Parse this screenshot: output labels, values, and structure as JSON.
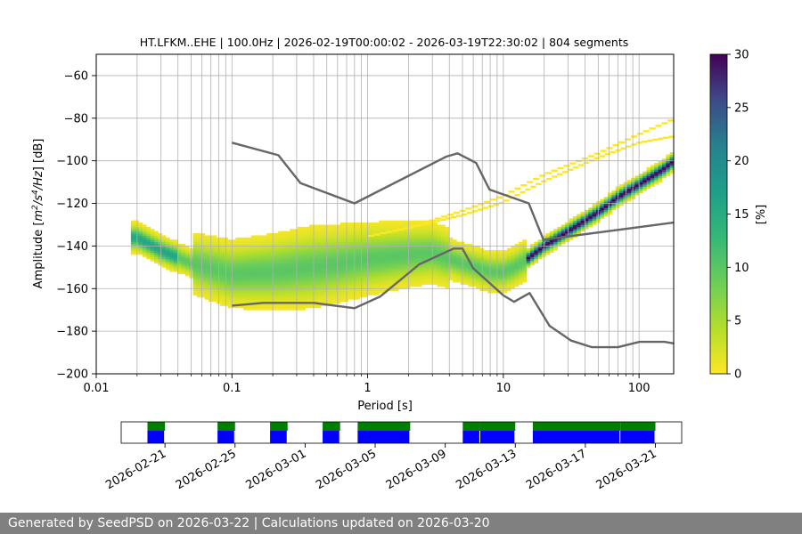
{
  "chart_data": [
    {
      "type": "heatmap",
      "title": "HT.LFKM..EHE | 100.0Hz | 2026-02-19T00:00:02 - 2026-03-19T22:30:02 | 804 segments",
      "xlabel": "Period [s]",
      "ylabel_parts": [
        "Amplitude [",
        "m",
        "2",
        "/",
        "s",
        "4",
        "/",
        "Hz",
        "] [dB]"
      ],
      "x_scale": "log",
      "xlim": [
        0.01,
        180
      ],
      "ylim": [
        -200,
        -50
      ],
      "x_ticks": [
        0.01,
        0.1,
        1,
        10,
        100
      ],
      "x_tick_labels": [
        "0.01",
        "0.1",
        "1",
        "10",
        "100"
      ],
      "y_ticks": [
        -200,
        -180,
        -160,
        -140,
        -120,
        -100,
        -80,
        -60
      ],
      "y_tick_labels": [
        "−200",
        "−180",
        "−160",
        "−140",
        "−120",
        "−100",
        "−80",
        "−60"
      ],
      "grid": true,
      "colorbar": {
        "label": "[%]",
        "range": [
          0,
          30
        ],
        "ticks": [
          0,
          5,
          10,
          15,
          20,
          25,
          30
        ],
        "colormap": "viridis_r"
      },
      "noise_models": [
        {
          "period": [
            0.1,
            0.22,
            0.32,
            0.8,
            3.8,
            4.6,
            6.3,
            7.9,
            15.4,
            20
          ],
          "db": [
            -91.5,
            -97.4,
            -110.5,
            -120,
            -98,
            -96.5,
            -101,
            -113.5,
            -120,
            -138
          ]
        },
        {
          "period": [
            0.1,
            0.17,
            0.4,
            0.8,
            1.24,
            2.4,
            4.3,
            5,
            6,
            10,
            12,
            15.6,
            21.9,
            31.6,
            45,
            70,
            101,
            154,
            180
          ],
          "db": [
            -168,
            -166.7,
            -166.7,
            -169.2,
            -163.7,
            -148.6,
            -141.2,
            -141.2,
            -150.5,
            -163.2,
            -166.2,
            -162.1,
            -177.5,
            -184.4,
            -187.5,
            -187.5,
            -185,
            -185,
            -185.7
          ]
        }
      ],
      "psd_percentile_curve": {
        "period": [
          0.02,
          0.03,
          0.05,
          0.1,
          0.2,
          0.5,
          1,
          2,
          3,
          5,
          8,
          10,
          12,
          15,
          20,
          30,
          50,
          70,
          100,
          150,
          180
        ],
        "db": [
          -136,
          -142,
          -148,
          -153,
          -152,
          -149,
          -146,
          -144,
          -143,
          -148,
          -152,
          -152,
          -150,
          -146,
          -140,
          -133,
          -124,
          -117,
          -111,
          -104,
          -100
        ]
      },
      "upper_lines": [
        {
          "period": [
            1,
            2,
            5,
            10,
            20,
            50,
            100,
            180
          ],
          "db": [
            -136,
            -132,
            -124,
            -117,
            -107,
            -97,
            -88,
            -81
          ]
        },
        {
          "period": [
            2,
            5,
            10,
            20,
            50,
            100,
            180
          ],
          "db": [
            -132,
            -126,
            -120,
            -110,
            -99,
            -92,
            -89
          ]
        }
      ],
      "fitted_line": {
        "period": [
          20,
          180
        ],
        "db": [
          -137,
          -129
        ]
      }
    },
    {
      "type": "timeline",
      "x_tick_labels": [
        "2026-02-21",
        "2026-02-25",
        "2026-03-01",
        "2026-03-05",
        "2026-03-09",
        "2026-03-13",
        "2026-03-17",
        "2026-03-21"
      ],
      "x_tick_day_index": [
        2,
        6,
        10,
        14,
        18,
        22,
        26,
        30
      ],
      "day_range": [
        -0.5,
        31.5
      ],
      "coverage_blocks": [
        {
          "start_day": 1.0,
          "end_day": 2.0
        },
        {
          "start_day": 5.0,
          "end_day": 6.0
        },
        {
          "start_day": 8.0,
          "end_day": 9.0
        },
        {
          "start_day": 11.0,
          "end_day": 12.0
        },
        {
          "start_day": 13.0,
          "end_day": 16.0
        },
        {
          "start_day": 19.0,
          "end_day": 20.0
        },
        {
          "start_day": 20.0,
          "end_day": 22.0
        },
        {
          "start_day": 23.0,
          "end_day": 28.0
        },
        {
          "start_day": 28.0,
          "end_day": 30.0
        }
      ],
      "colors": {
        "psd": "#0000ff",
        "data": "#008000"
      }
    }
  ],
  "footer": {
    "text": "Generated by SeedPSD on 2026-03-22 | Calculations updated on 2026-03-20"
  },
  "colors": {
    "grid": "#b0b0b0",
    "noise_model": "#666666",
    "footer_bg": "#808080"
  }
}
